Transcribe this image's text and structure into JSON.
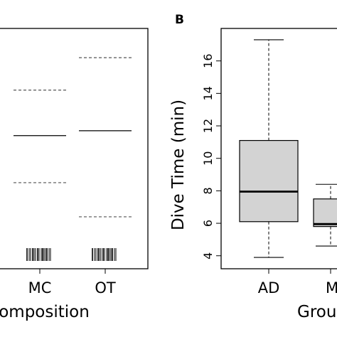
{
  "chart_data": [
    {
      "type": "bar",
      "panel": "A",
      "description_visible_part": "right portion of a panel showing per-group summary lines (dashed interval bounds, solid center) and rug ticks of observations",
      "categories": [
        "MC",
        "OT"
      ],
      "series": [
        {
          "group": "MC",
          "lower": 8.5,
          "center": 11.4,
          "upper": 14.2
        },
        {
          "group": "OT",
          "lower": 6.4,
          "center": 11.7,
          "upper": 16.2
        }
      ],
      "ylim": [
        3.2,
        18.0
      ],
      "xlabel_partial": "omposition",
      "ylabel": "",
      "grid": false
    },
    {
      "type": "box",
      "panel": "B",
      "title": "",
      "categories": [
        "AD",
        "M"
      ],
      "boxes": [
        {
          "group": "AD",
          "whisker_low": 3.9,
          "q1": 6.1,
          "median": 7.95,
          "q3": 11.1,
          "whisker_high": 17.3
        },
        {
          "group": "M",
          "whisker_low": 4.6,
          "q1": 5.8,
          "median": 5.95,
          "q3": 7.5,
          "whisker_high": 8.4
        }
      ],
      "xlabel_partial": "Grou",
      "ylabel": "Dive Time (min)",
      "yticks": [
        4,
        6,
        8,
        10,
        12,
        14,
        16
      ],
      "ylim": [
        3.2,
        18.0
      ],
      "grid": false
    }
  ],
  "labels": {
    "panel_b_letter": "B",
    "xtick_mc": "MC",
    "xtick_ot": "OT",
    "xtick_ad": "AD",
    "xtick_m": "M",
    "panel_a_xlabel": "omposition",
    "panel_b_xlabel": "Grou",
    "panel_b_ylabel": "Dive Time (min)"
  },
  "colors": {
    "box_fill": "#d3d3d3",
    "line": "#000000",
    "dashed": "#555555"
  }
}
